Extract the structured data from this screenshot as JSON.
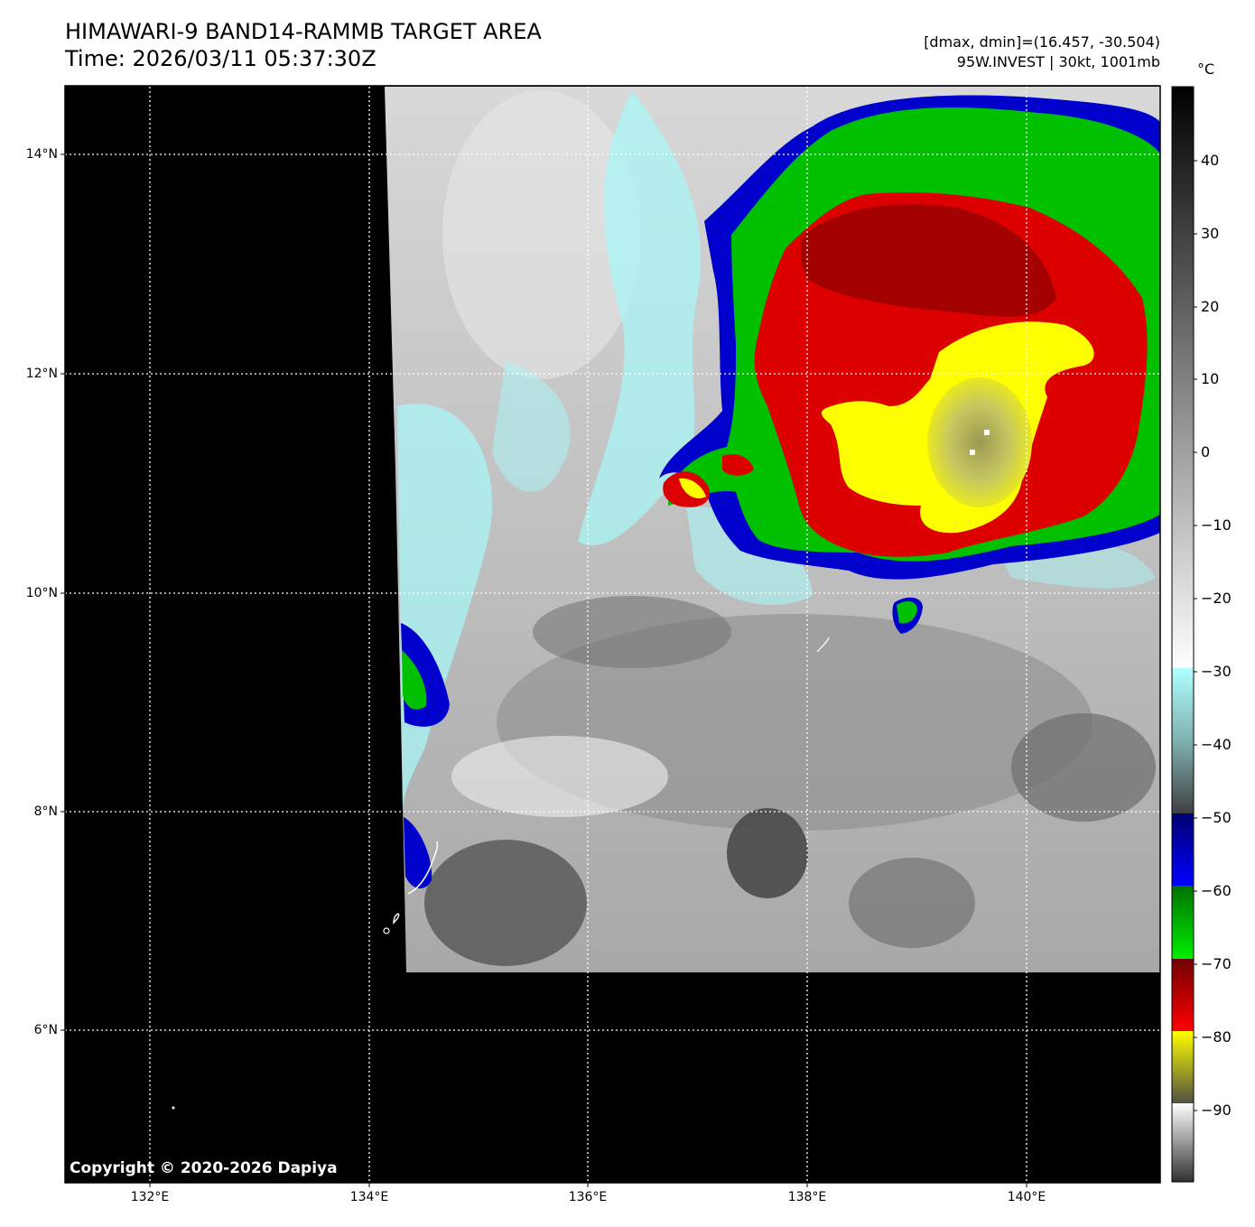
{
  "header": {
    "title_line1": "HIMAWARI-9 BAND14-RAMMB TARGET AREA",
    "title_line2": "Time: 2026/03/11 05:37:30Z",
    "info_line1": "[dmax, dmin]=(16.457, -30.504)",
    "info_line2": "95W.INVEST | 30kt, 1001mb"
  },
  "map": {
    "lat_labels": [
      "14°N",
      "12°N",
      "10°N",
      "8°N",
      "6°N"
    ],
    "lon_labels": [
      "132°E",
      "134°E",
      "136°E",
      "138°E",
      "140°E"
    ],
    "grid": true,
    "storm_name": "95W.INVEST",
    "background_color": "#000000"
  },
  "colorbar": {
    "unit": "°C",
    "ticks": [
      "40",
      "30",
      "20",
      "10",
      "0",
      "−10",
      "−20",
      "−30",
      "−40",
      "−50",
      "−60",
      "−70",
      "−80",
      "−90"
    ],
    "colors": {
      "blue": "#0000cc",
      "green": "#00c000",
      "red": "#dd0000",
      "dark_red": "#990000",
      "yellow": "#ffff00",
      "cyan": "#aaf5f5"
    }
  },
  "copyright": "Copyright © 2020-2026 Dapiya"
}
